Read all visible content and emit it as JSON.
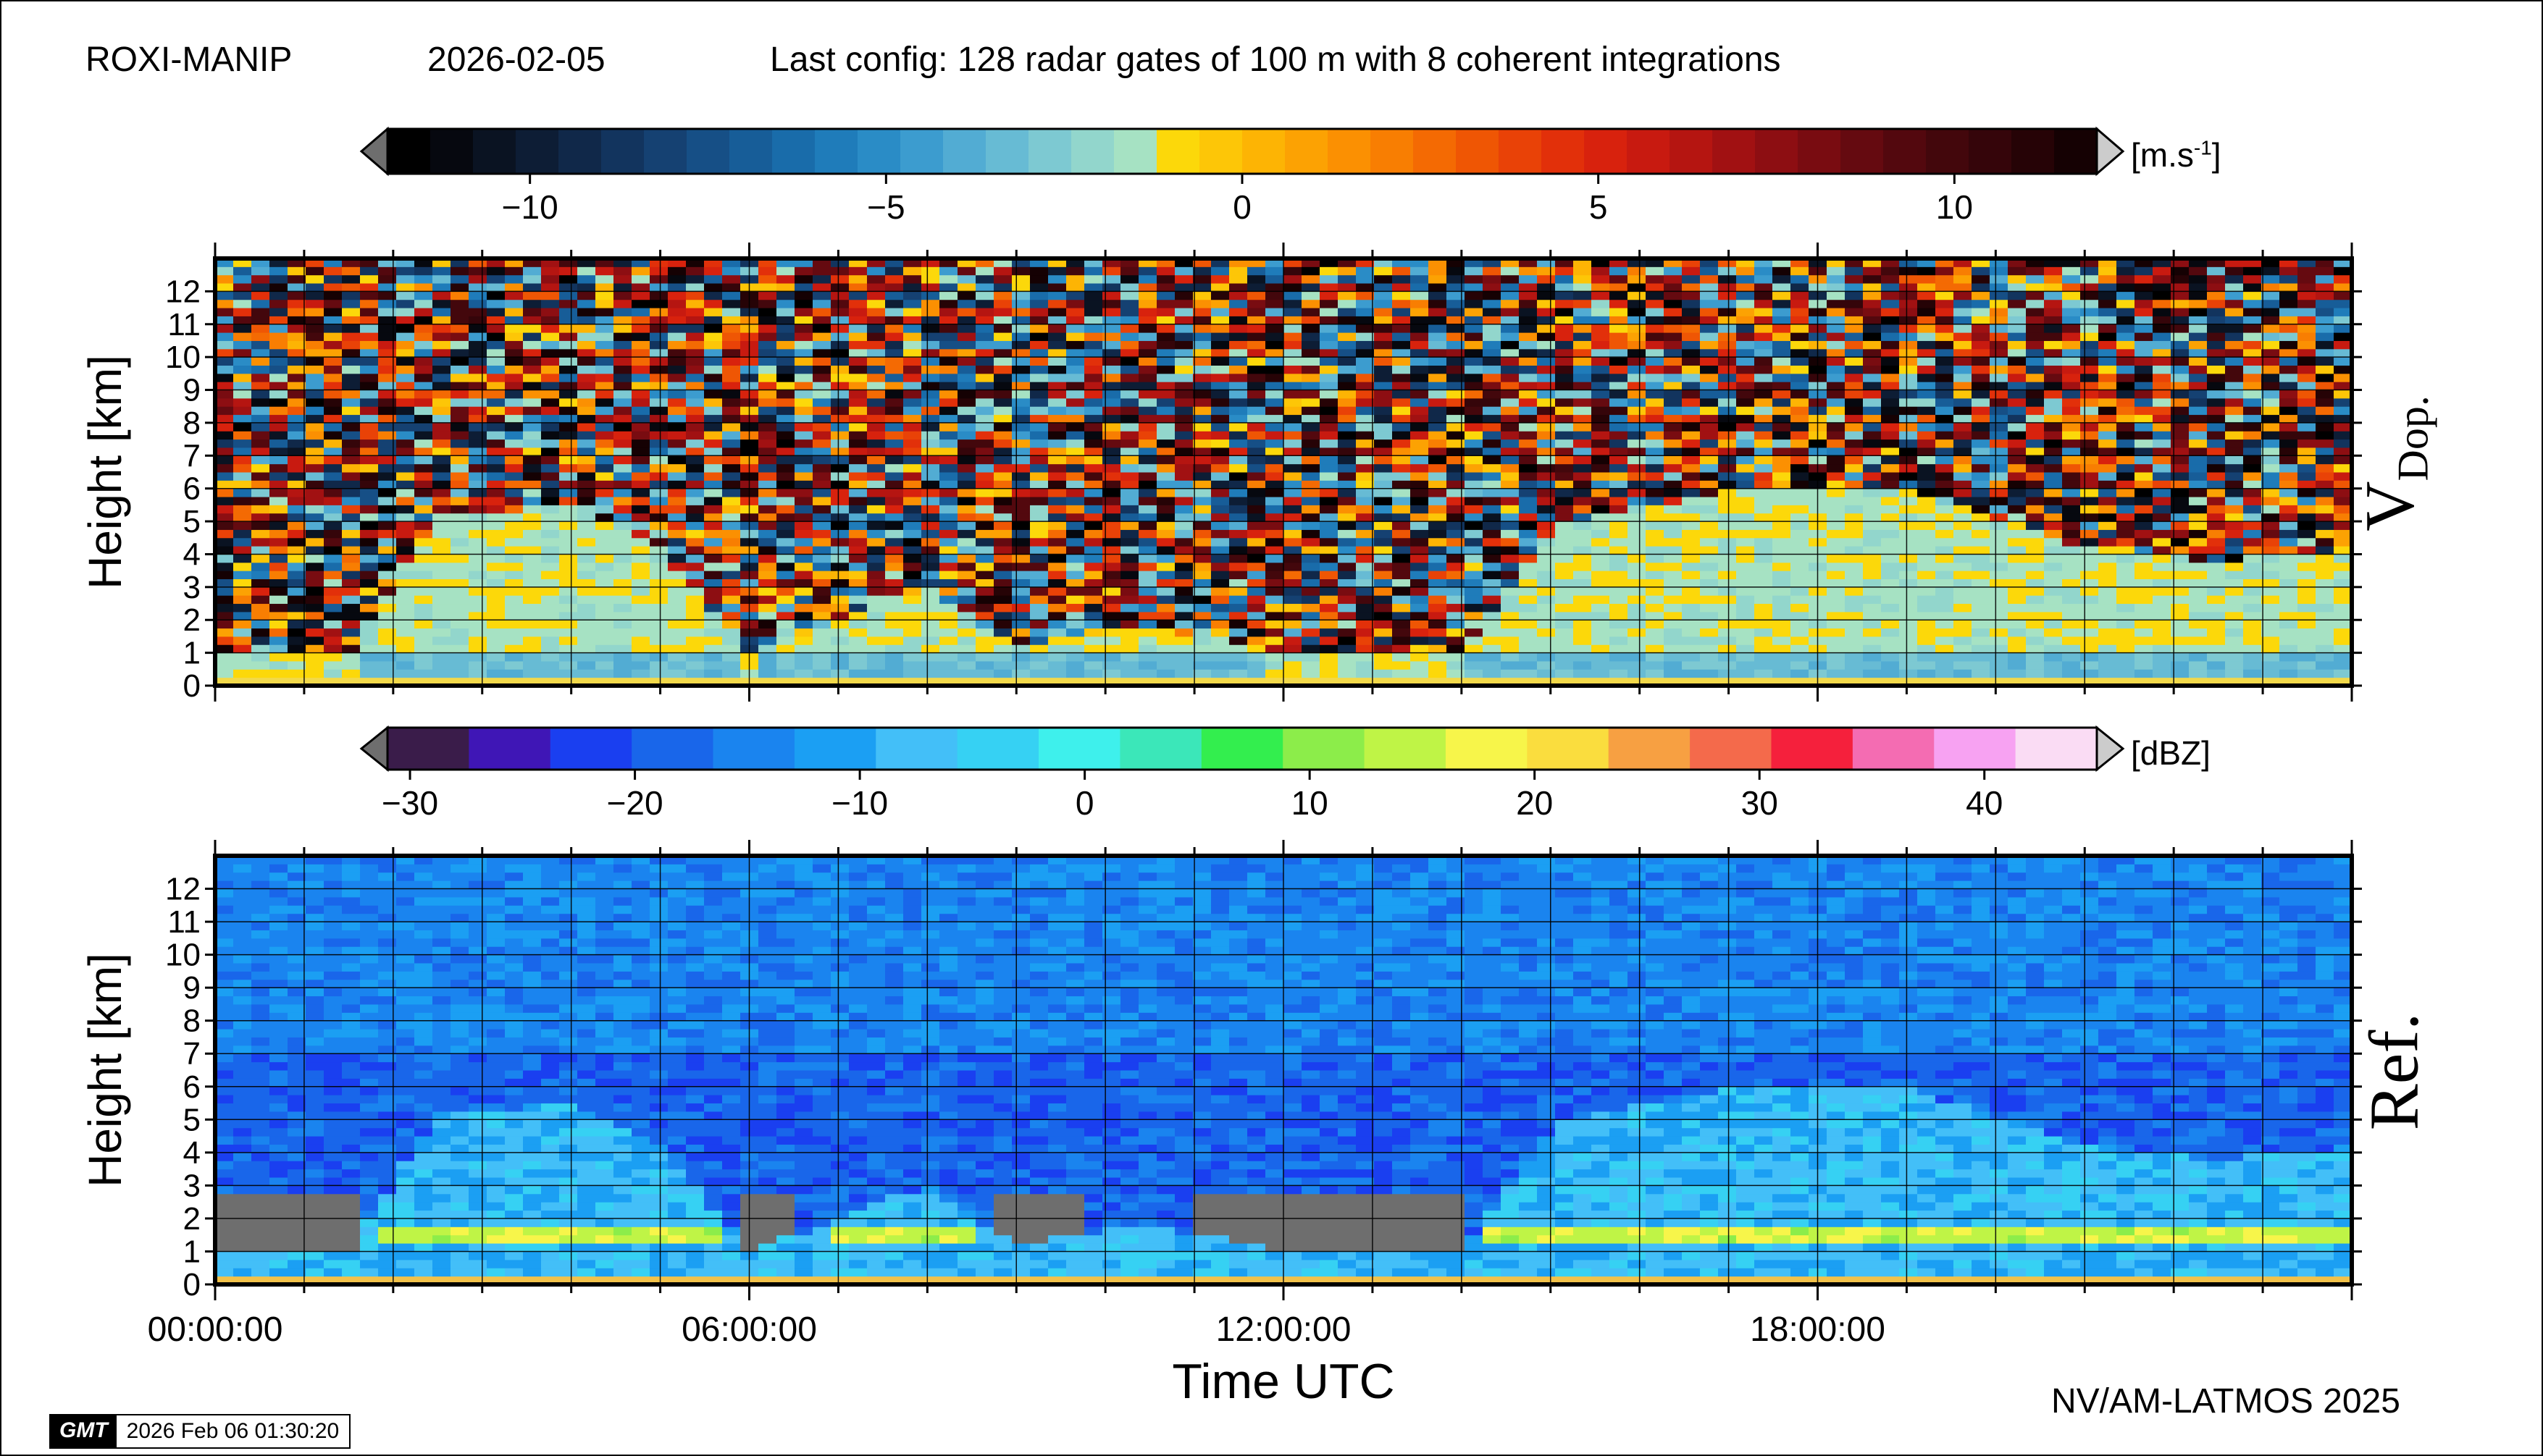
{
  "header": {
    "station": "ROXI-MANIP",
    "date": "2026-02-05",
    "config": "Last config: 128 radar gates of 100 m with 8 coherent integrations"
  },
  "footer": {
    "credit": "NV/AM-LATMOS 2025",
    "gmt_logo": "GMT",
    "timestamp": "2026 Feb 06 01:30:20"
  },
  "colorbars": [
    {
      "unit_base": "[m.s",
      "unit_exp": "-1",
      "unit_close": "]",
      "range": [
        -12,
        12
      ],
      "ticks": [
        -10,
        -5,
        0,
        5,
        10
      ],
      "tick_labels": [
        "−10",
        "−5",
        "0",
        "5",
        "10"
      ],
      "colors": [
        "#000000",
        "#06080f",
        "#0a1322",
        "#0d1d35",
        "#102849",
        "#12345e",
        "#154172",
        "#164f86",
        "#175d98",
        "#196caa",
        "#1f7cba",
        "#2a8cc6",
        "#3c9ccf",
        "#52acd3",
        "#67bbd4",
        "#7dc9d2",
        "#92d6cc",
        "#a6e2c3",
        "#fcd80a",
        "#fdc607",
        "#fdb404",
        "#fca203",
        "#fb9002",
        "#f87e02",
        "#f46a03",
        "#ef5604",
        "#e94207",
        "#e2300a",
        "#d8220d",
        "#c81a10",
        "#b51511",
        "#a11112",
        "#8d0e12",
        "#790c11",
        "#650a10",
        "#53080e",
        "#43070c",
        "#35050a",
        "#260306",
        "#150103"
      ]
    },
    {
      "unit_base": "[dBZ]",
      "range": [
        -31,
        45
      ],
      "ticks": [
        -30,
        -20,
        -10,
        0,
        10,
        20,
        30,
        40
      ],
      "tick_labels": [
        "−30",
        "−20",
        "−10",
        "0",
        "10",
        "20",
        "30",
        "40"
      ],
      "colors": [
        "#3a1c4a",
        "#3f16b6",
        "#1a3ff0",
        "#1966ea",
        "#1a84ef",
        "#1b9ff3",
        "#43bff8",
        "#36d1f3",
        "#3ef0ec",
        "#3be7b9",
        "#33ee4e",
        "#8ced4a",
        "#bff446",
        "#f7f54a",
        "#fadd3e",
        "#f7a042",
        "#f46a4b",
        "#f5203c",
        "#f46cb2",
        "#f7a2f2",
        "#fadcf4"
      ]
    }
  ],
  "chart_data": [
    {
      "type": "heatmap",
      "title": "",
      "panel_label": "V",
      "panel_label_sub": "Dop.",
      "variable": "Doppler velocity",
      "unit": "m.s-1",
      "ylabel": "Height [km]",
      "xlabel": "",
      "ylim": [
        0,
        13
      ],
      "xlim": [
        0,
        24
      ],
      "yticks": [
        0,
        1,
        2,
        3,
        4,
        5,
        6,
        7,
        8,
        9,
        10,
        11,
        12
      ],
      "grid": true,
      "description_values": {
        "surface_layer_ms": -4,
        "echo_field_ms": -2,
        "noise_above_echo": "random"
      },
      "echo_top_km": [
        [
          0,
          0.9
        ],
        [
          1.5,
          0.9
        ],
        [
          2.5,
          5.2
        ],
        [
          4,
          5.5
        ],
        [
          5,
          4.2
        ],
        [
          6,
          1.0
        ],
        [
          8,
          3.0
        ],
        [
          9,
          1.2
        ],
        [
          10.5,
          1.8
        ],
        [
          12,
          1.0
        ],
        [
          14,
          1.0
        ],
        [
          15,
          4.8
        ],
        [
          17,
          6.0
        ],
        [
          19,
          6.0
        ],
        [
          21,
          4.2
        ],
        [
          22.5,
          3.8
        ],
        [
          24,
          4.2
        ]
      ]
    },
    {
      "type": "heatmap",
      "title": "",
      "panel_label": "Ref.",
      "variable": "Reflectivity",
      "unit": "dBZ",
      "ylabel": "Height [km]",
      "xlabel": "Time UTC",
      "ylim": [
        0,
        13
      ],
      "xlim": [
        0,
        24
      ],
      "yticks": [
        0,
        1,
        2,
        3,
        4,
        5,
        6,
        7,
        8,
        9,
        10,
        11,
        12
      ],
      "xticks": [
        "00:00:00",
        "06:00:00",
        "12:00:00",
        "18:00:00"
      ],
      "grid": true,
      "description_values": {
        "background_dbz": -22,
        "echo_dbz": -8,
        "melting_layer_km": 1.5,
        "melting_layer_dbz": 12
      },
      "echo_top_km": [
        [
          0,
          0.9
        ],
        [
          1.5,
          0.9
        ],
        [
          2.5,
          5.2
        ],
        [
          4,
          5.5
        ],
        [
          5,
          4.2
        ],
        [
          6,
          1.0
        ],
        [
          8,
          3.0
        ],
        [
          9,
          1.2
        ],
        [
          10.5,
          1.8
        ],
        [
          12,
          1.0
        ],
        [
          14,
          1.0
        ],
        [
          15,
          4.8
        ],
        [
          17,
          6.0
        ],
        [
          19,
          6.0
        ],
        [
          21,
          4.2
        ],
        [
          22.5,
          3.8
        ],
        [
          24,
          4.2
        ]
      ]
    }
  ]
}
